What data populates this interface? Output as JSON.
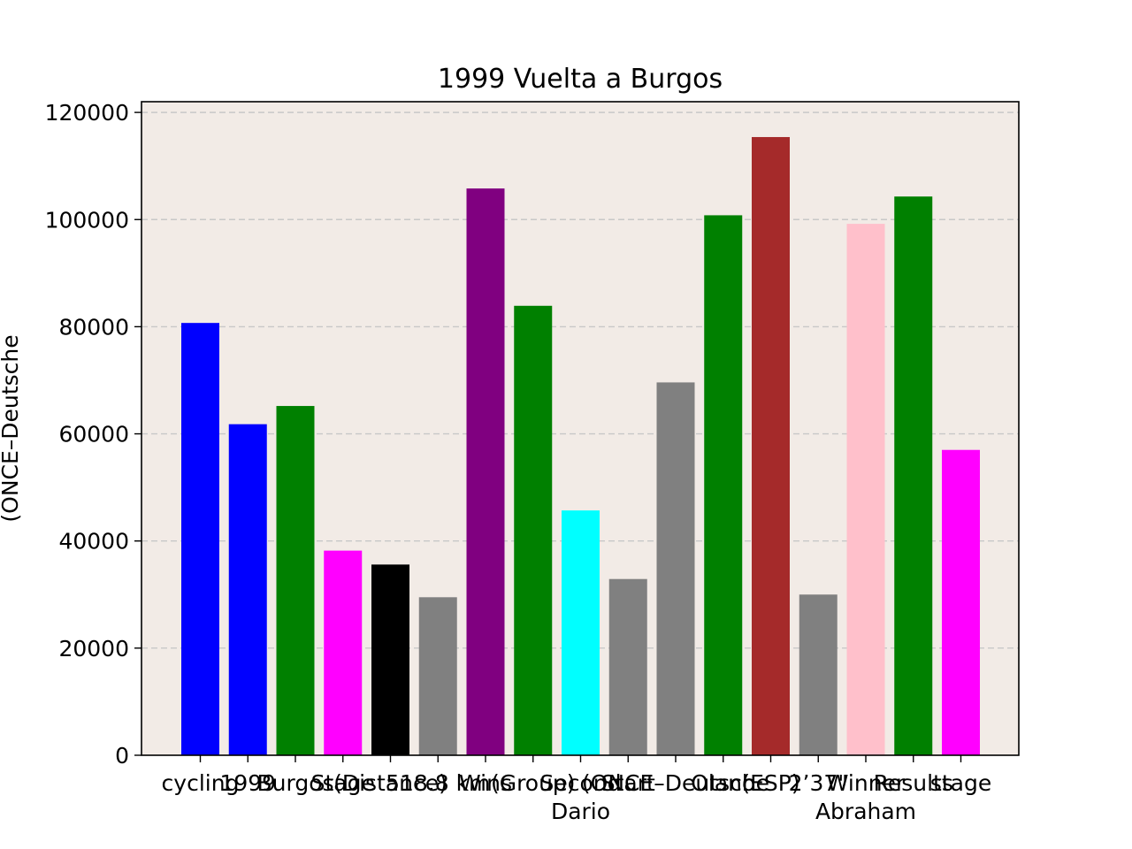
{
  "chart_data": {
    "type": "bar",
    "title": "1999 Vuelta a Burgos",
    "xlabel": "",
    "ylabel": "(ONCE–Deutsche",
    "ylim": [
      0,
      122000
    ],
    "yticks": [
      0,
      20000,
      40000,
      60000,
      80000,
      100000,
      120000
    ],
    "grid": "y-dashed",
    "background": "#f2ebe6",
    "categories": [
      "cycling",
      "1999",
      "Burgos",
      "Stage",
      "(Distance)",
      "518.8 km",
      "Wins",
      "(Group)",
      "Second Dario",
      "Start",
      "(ONCE–Deutsche",
      "Olano",
      "(ESP)",
      "2’37\"",
      "Winner Abraham",
      "Results",
      "stage"
    ],
    "values": [
      80700,
      61800,
      65200,
      38200,
      35600,
      29500,
      105800,
      83900,
      45700,
      32900,
      69600,
      100800,
      115400,
      30000,
      99200,
      104300,
      57000
    ],
    "colors": [
      "#0000ff",
      "#0000ff",
      "#008000",
      "#ff00ff",
      "#000000",
      "#808080",
      "#800080",
      "#008000",
      "#00ffff",
      "#808080",
      "#808080",
      "#008000",
      "#a52a2a",
      "#808080",
      "#ffc0cb",
      "#008000",
      "#ff00ff"
    ]
  }
}
